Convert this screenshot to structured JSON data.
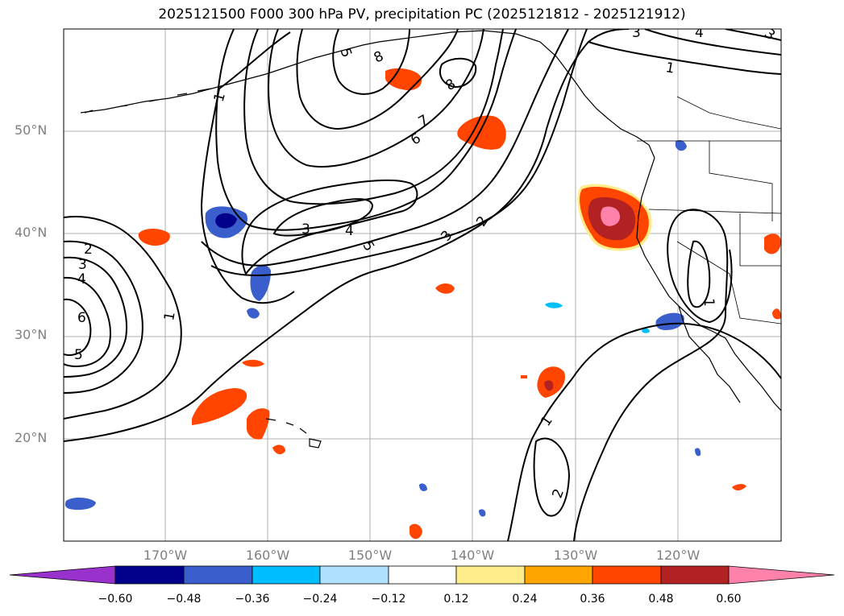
{
  "title": "2025121500 F000 300 hPa PV, precipitation PC (2025121812 - 2025121912)",
  "lat_labels": [
    "50°N",
    "40°N",
    "30°N",
    "20°N"
  ],
  "lon_labels": [
    "170°W",
    "160°W",
    "150°W",
    "140°W",
    "130°W",
    "120°W"
  ],
  "contour_labels": [
    "1",
    "2",
    "3",
    "4",
    "5",
    "6",
    "7",
    "8"
  ],
  "colorbar": {
    "ticks": [
      "−0.60",
      "−0.48",
      "−0.36",
      "−0.24",
      "−0.12",
      "0.12",
      "0.24",
      "0.36",
      "0.48",
      "0.60"
    ],
    "colors": [
      "#9932CC",
      "#00008B",
      "#3A5FCD",
      "#00BFFF",
      "#B0E2FF",
      "#FFFFFF",
      "#FFEC8B",
      "#FFA500",
      "#FF4500",
      "#B22222",
      "#FF82AB"
    ]
  }
}
